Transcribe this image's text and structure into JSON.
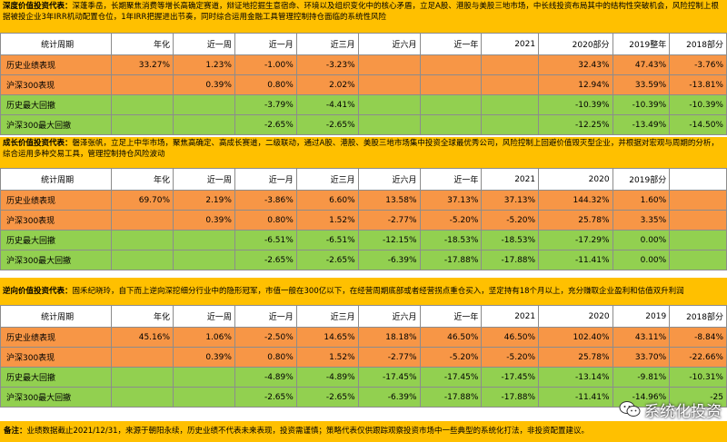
{
  "colors": {
    "header_bg": "#ffc000",
    "perf_row": "#f79646",
    "drawdown_row": "#92d050"
  },
  "columns": [
    "统计周期",
    "年化",
    "近一周",
    "近一月",
    "近三月",
    "近六月",
    "近一年",
    "2021",
    "2020部分",
    "2019整年",
    "2018部分"
  ],
  "sections": [
    {
      "title": "深度价值投资代表：",
      "desc": "深蓬季岳，长期聚焦消费等增长高确定赛道，辩证地挖掘生意宿命、环境以及组织变化中的核心矛盾，立足A股、港股与美股三地市场，中长线投资布局其中的结构性突破机会，风险控制上根据被投企业3年IRR机动配置仓位，1年IRR把握进出节奏，同时综合运用金融工具管理控制持仓面临的系统性风险",
      "columns": [
        "统计周期",
        "年化",
        "近一周",
        "近一月",
        "近三月",
        "近六月",
        "近一年",
        "2021",
        "2020部分",
        "2019整年",
        "2018部分"
      ],
      "rows": [
        {
          "label": "历史业绩表现",
          "type": "perf",
          "values": [
            "33.27%",
            "1.23%",
            "-1.00%",
            "-3.23%",
            "",
            "",
            "",
            "32.43%",
            "47.43%",
            "-3.76%"
          ]
        },
        {
          "label": "沪深300表现",
          "type": "perf",
          "values": [
            "",
            "0.39%",
            "0.80%",
            "2.02%",
            "",
            "",
            "",
            "12.94%",
            "33.59%",
            "-13.81%"
          ]
        },
        {
          "label": "历史最大回撤",
          "type": "dd",
          "values": [
            "",
            "",
            "-3.79%",
            "-4.41%",
            "",
            "",
            "",
            "-10.39%",
            "-10.39%",
            "-10.39%"
          ]
        },
        {
          "label": "沪深300最大回撤",
          "type": "dd",
          "values": [
            "",
            "",
            "-2.65%",
            "-2.65%",
            "",
            "",
            "",
            "-12.25%",
            "-13.49%",
            "-14.50%"
          ]
        }
      ]
    },
    {
      "title": "成长价值投资代表：",
      "desc": "磐泽张帆，立足上中华市场，聚焦高确定、高成长赛道，二级联动，通过A股、港股、美股三地市场集中投资全球最优秀公司，风险控制上回避价值毁灭型企业，并根据对宏观与周期的分析，综合运用多种交易工具，管理控制持仓风险波动",
      "columns": [
        "统计周期",
        "年化",
        "近一周",
        "近一月",
        "近三月",
        "近六月",
        "近一年",
        "2021",
        "2020",
        "2019部分",
        ""
      ],
      "rows": [
        {
          "label": "历史业绩表现",
          "type": "perf",
          "values": [
            "69.70%",
            "2.19%",
            "-3.86%",
            "6.60%",
            "13.58%",
            "37.13%",
            "37.13%",
            "144.32%",
            "1.60%",
            ""
          ]
        },
        {
          "label": "沪深300表现",
          "type": "perf",
          "values": [
            "",
            "0.39%",
            "0.80%",
            "1.52%",
            "-2.77%",
            "-5.20%",
            "-5.20%",
            "25.78%",
            "3.35%",
            ""
          ]
        },
        {
          "label": "历史最大回撤",
          "type": "dd",
          "values": [
            "",
            "",
            "-6.51%",
            "-6.51%",
            "-12.15%",
            "-18.53%",
            "-18.53%",
            "-17.29%",
            "0.00%",
            ""
          ]
        },
        {
          "label": "沪深300最大回撤",
          "type": "dd",
          "values": [
            "",
            "",
            "-2.65%",
            "-2.65%",
            "-6.39%",
            "-17.88%",
            "-17.88%",
            "-11.41%",
            "0.00%",
            ""
          ]
        }
      ]
    },
    {
      "title": "逆向价值投资代表：",
      "desc": "固禾纪晓玲，自下而上逆向深挖细分行业中的隐形冠军，市值一般在300亿以下，在经营周期底部或者经营拐点重仓买入，坚定持有18个月以上，充分赚取企业盈利和估值双升利润",
      "columns": [
        "统计周期",
        "年化",
        "近一周",
        "近一月",
        "近三月",
        "近六月",
        "近一年",
        "2021",
        "2020",
        "2019",
        "2018部分"
      ],
      "rows": [
        {
          "label": "历史业绩表现",
          "type": "perf",
          "values": [
            "45.16%",
            "1.06%",
            "-2.50%",
            "14.65%",
            "18.18%",
            "46.50%",
            "46.50%",
            "102.40%",
            "43.11%",
            "-8.84%"
          ]
        },
        {
          "label": "沪深300表现",
          "type": "perf",
          "values": [
            "",
            "0.39%",
            "0.80%",
            "1.52%",
            "-2.77%",
            "-5.20%",
            "-5.20%",
            "25.78%",
            "33.70%",
            "-22.66%"
          ]
        },
        {
          "label": "历史最大回撤",
          "type": "dd",
          "values": [
            "",
            "",
            "-4.89%",
            "-4.89%",
            "-17.45%",
            "-17.45%",
            "-17.45%",
            "-13.14%",
            "-9.81%",
            "-10.31%"
          ]
        },
        {
          "label": "沪深300最大回撤",
          "type": "dd",
          "values": [
            "",
            "",
            "-2.65%",
            "-2.65%",
            "-6.39%",
            "-17.88%",
            "-17.88%",
            "-11.41%",
            "-14.96%",
            "-25"
          ]
        }
      ]
    }
  ],
  "footer": {
    "label": "备注：",
    "text": "业绩数据截止2021/12/31，来源于朝阳永续，历史业绩不代表未来表现，投资需谨慎；策略代表仅供跟踪观察投资市场中一些典型的系统化打法，非投资配置建议。"
  },
  "watermark": {
    "text": "系统化投资",
    "icon": "wechat-icon"
  }
}
